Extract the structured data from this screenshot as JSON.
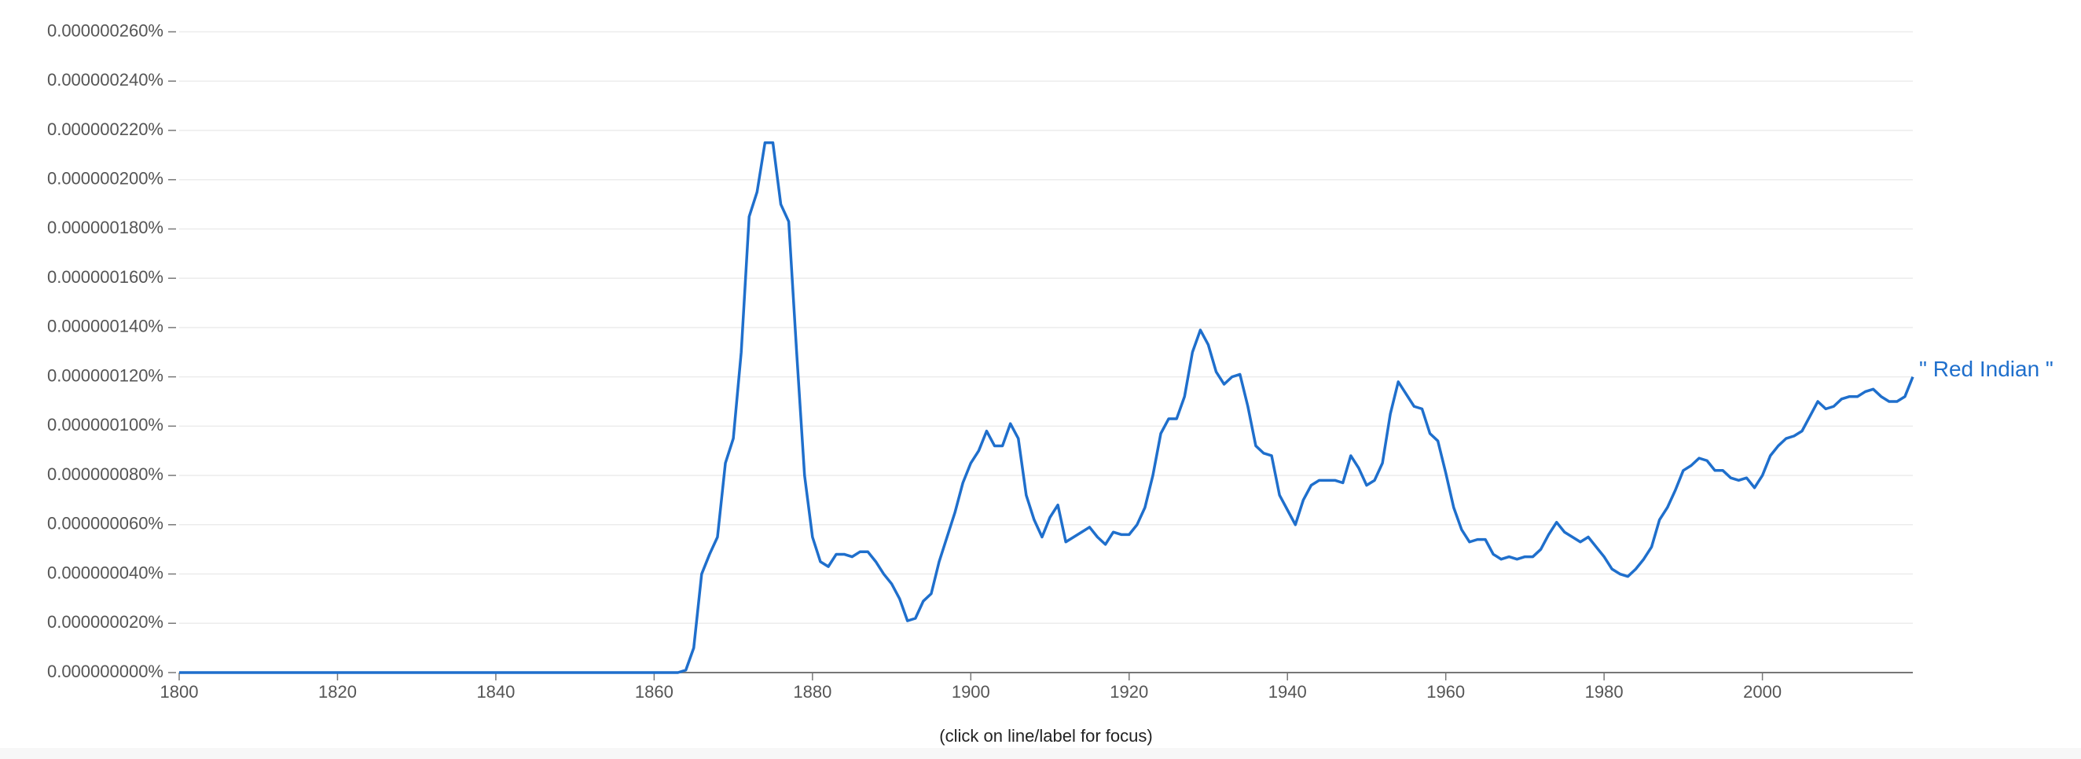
{
  "chart_data": {
    "type": "line",
    "footer": "(click on line/label for focus)",
    "x": [
      1800,
      1863,
      1864,
      1865,
      1866,
      1867,
      1868,
      1869,
      1870,
      1871,
      1872,
      1873,
      1874,
      1875,
      1876,
      1877,
      1878,
      1879,
      1880,
      1881,
      1882,
      1883,
      1884,
      1885,
      1886,
      1887,
      1888,
      1889,
      1890,
      1891,
      1892,
      1893,
      1894,
      1895,
      1896,
      1897,
      1898,
      1899,
      1900,
      1901,
      1902,
      1903,
      1904,
      1905,
      1906,
      1907,
      1908,
      1909,
      1910,
      1911,
      1912,
      1913,
      1914,
      1915,
      1916,
      1917,
      1918,
      1919,
      1920,
      1921,
      1922,
      1923,
      1924,
      1925,
      1926,
      1927,
      1928,
      1929,
      1930,
      1931,
      1932,
      1933,
      1934,
      1935,
      1936,
      1937,
      1938,
      1939,
      1940,
      1941,
      1942,
      1943,
      1944,
      1945,
      1946,
      1947,
      1948,
      1949,
      1950,
      1951,
      1952,
      1953,
      1954,
      1955,
      1956,
      1957,
      1958,
      1959,
      1960,
      1961,
      1962,
      1963,
      1964,
      1965,
      1966,
      1967,
      1968,
      1969,
      1970,
      1971,
      1972,
      1973,
      1974,
      1975,
      1976,
      1977,
      1978,
      1979,
      1980,
      1981,
      1982,
      1983,
      1984,
      1985,
      1986,
      1987,
      1988,
      1989,
      1990,
      1991,
      1992,
      1993,
      1994,
      1995,
      1996,
      1997,
      1998,
      1999,
      2000,
      2001,
      2002,
      2003,
      2004,
      2005,
      2006,
      2007,
      2008,
      2009,
      2010,
      2011,
      2012,
      2013,
      2014,
      2015,
      2016,
      2017,
      2018,
      2019
    ],
    "series": [
      {
        "name": "\" Red Indian \"",
        "color": "#1f6fcc",
        "values": [
          0,
          0,
          1e-09,
          1e-08,
          4e-08,
          4.8e-08,
          5.5e-08,
          8.5e-08,
          9.5e-08,
          1.3e-07,
          1.85e-07,
          1.95e-07,
          2.15e-07,
          2.15e-07,
          1.9e-07,
          1.83e-07,
          1.3e-07,
          8e-08,
          5.5e-08,
          4.5e-08,
          4.3e-08,
          4.8e-08,
          4.8e-08,
          4.7e-08,
          4.9e-08,
          4.9e-08,
          4.5e-08,
          4e-08,
          3.6e-08,
          3e-08,
          2.1e-08,
          2.2e-08,
          2.9e-08,
          3.2e-08,
          4.5e-08,
          5.5e-08,
          6.5e-08,
          7.7e-08,
          8.5e-08,
          9e-08,
          9.8e-08,
          9.2e-08,
          9.2e-08,
          1.01e-07,
          9.5e-08,
          7.2e-08,
          6.2e-08,
          5.5e-08,
          6.3e-08,
          6.8e-08,
          5.3e-08,
          5.5e-08,
          5.7e-08,
          5.9e-08,
          5.5e-08,
          5.2e-08,
          5.7e-08,
          5.6e-08,
          5.6e-08,
          6e-08,
          6.7e-08,
          8e-08,
          9.7e-08,
          1.03e-07,
          1.03e-07,
          1.12e-07,
          1.3e-07,
          1.39e-07,
          1.33e-07,
          1.22e-07,
          1.17e-07,
          1.2e-07,
          1.21e-07,
          1.08e-07,
          9.2e-08,
          8.9e-08,
          8.8e-08,
          7.2e-08,
          6.6e-08,
          6e-08,
          7e-08,
          7.6e-08,
          7.8e-08,
          7.8e-08,
          7.8e-08,
          7.7e-08,
          8.8e-08,
          8.3e-08,
          7.6e-08,
          7.8e-08,
          8.5e-08,
          1.05e-07,
          1.18e-07,
          1.13e-07,
          1.08e-07,
          1.07e-07,
          9.7e-08,
          9.4e-08,
          8.1e-08,
          6.7e-08,
          5.8e-08,
          5.3e-08,
          5.4e-08,
          5.4e-08,
          4.8e-08,
          4.6e-08,
          4.7e-08,
          4.6e-08,
          4.7e-08,
          4.7e-08,
          5e-08,
          5.6e-08,
          6.1e-08,
          5.7e-08,
          5.5e-08,
          5.3e-08,
          5.5e-08,
          5.1e-08,
          4.7e-08,
          4.2e-08,
          4e-08,
          3.9e-08,
          4.2e-08,
          4.6e-08,
          5.1e-08,
          6.2e-08,
          6.7e-08,
          7.4e-08,
          8.2e-08,
          8.4e-08,
          8.7e-08,
          8.6e-08,
          8.2e-08,
          8.2e-08,
          7.9e-08,
          7.8e-08,
          7.9e-08,
          7.5e-08,
          8e-08,
          8.8e-08,
          9.2e-08,
          9.5e-08,
          9.6e-08,
          9.8e-08,
          1.04e-07,
          1.1e-07,
          1.07e-07,
          1.08e-07,
          1.11e-07,
          1.12e-07,
          1.12e-07,
          1.14e-07,
          1.15e-07,
          1.12e-07,
          1.1e-07,
          1.1e-07,
          1.12e-07,
          1.2e-07
        ]
      }
    ],
    "xlim": [
      1800,
      2019
    ],
    "xticks": [
      1800,
      1820,
      1840,
      1860,
      1880,
      1900,
      1920,
      1940,
      1960,
      1980,
      2000
    ],
    "ylim": [
      0,
      2.6e-07
    ],
    "yticks": [
      {
        "value": 0,
        "label": "0.000000000%"
      },
      {
        "value": 2e-08,
        "label": "0.000000020%"
      },
      {
        "value": 4e-08,
        "label": "0.000000040%"
      },
      {
        "value": 6e-08,
        "label": "0.000000060%"
      },
      {
        "value": 8e-08,
        "label": "0.000000080%"
      },
      {
        "value": 1e-07,
        "label": "0.000000100%"
      },
      {
        "value": 1.2e-07,
        "label": "0.000000120%"
      },
      {
        "value": 1.4e-07,
        "label": "0.000000140%"
      },
      {
        "value": 1.6e-07,
        "label": "0.000000160%"
      },
      {
        "value": 1.8e-07,
        "label": "0.000000180%"
      },
      {
        "value": 2e-07,
        "label": "0.000000200%"
      },
      {
        "value": 2.2e-07,
        "label": "0.000000220%"
      },
      {
        "value": 2.4e-07,
        "label": "0.000000240%"
      },
      {
        "value": 2.6e-07,
        "label": "0.000000260%"
      }
    ],
    "grid": true
  }
}
